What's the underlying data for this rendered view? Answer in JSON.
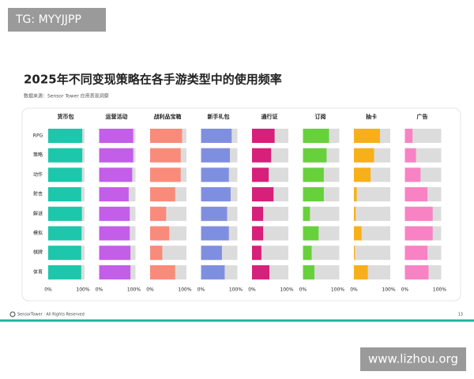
{
  "watermark_top": "TG: MYYJJPP",
  "watermark_bottom": "www.lizhou.org",
  "footer_text": "SensorTower · All Rights Reserved",
  "page_number": "13",
  "chart_data": {
    "type": "bar",
    "orientation": "horizontal",
    "title": "2025年不同变现策略在各手游类型中的使用频率",
    "source": "数据来源：Sensor Tower 应用表现洞察",
    "categories": [
      "RPG",
      "策略",
      "动作",
      "射击",
      "解谜",
      "模拟",
      "棋牌",
      "体育"
    ],
    "xlim": [
      0,
      100
    ],
    "xticks": [
      {
        "value": 0,
        "label": "0%"
      },
      {
        "value": 100,
        "label": "100%"
      }
    ],
    "series": [
      {
        "name": "货币包",
        "color": "#1cc7ab",
        "values": [
          98,
          98,
          97,
          95,
          97,
          96,
          95,
          95
        ]
      },
      {
        "name": "运营活动",
        "color": "#c35ee8",
        "values": [
          98,
          98,
          95,
          85,
          88,
          88,
          90,
          90
        ]
      },
      {
        "name": "战利品宝箱",
        "color": "#f98b7a",
        "values": [
          92,
          88,
          88,
          72,
          46,
          55,
          35,
          72
        ]
      },
      {
        "name": "新手礼包",
        "color": "#7f8fe0",
        "values": [
          88,
          83,
          80,
          85,
          75,
          80,
          60,
          68
        ]
      },
      {
        "name": "通行证",
        "color": "#d6207a",
        "values": [
          65,
          55,
          48,
          62,
          32,
          32,
          27,
          50
        ]
      },
      {
        "name": "订阅",
        "color": "#67d13c",
        "values": [
          75,
          68,
          60,
          60,
          20,
          45,
          25,
          33
        ]
      },
      {
        "name": "抽卡",
        "color": "#f7b01a",
        "values": [
          75,
          58,
          48,
          8,
          5,
          22,
          3,
          40
        ]
      },
      {
        "name": "广告",
        "color": "#f783c4",
        "values": [
          22,
          32,
          45,
          65,
          80,
          80,
          65,
          68
        ]
      }
    ]
  }
}
